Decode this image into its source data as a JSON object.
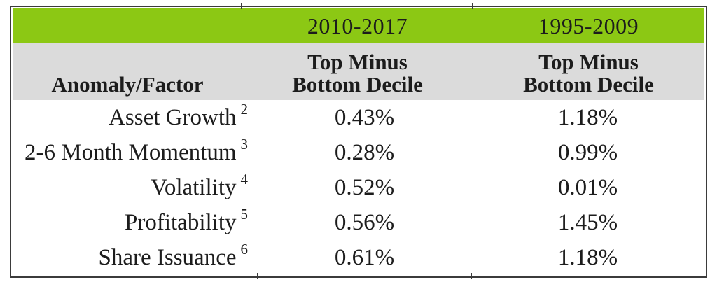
{
  "table": {
    "header": {
      "period1": "2010-2017",
      "period2": "1995-2009"
    },
    "subheader": {
      "factor_label": "Anomaly/Factor",
      "col2_line1": "Top Minus",
      "col2_line2": "Bottom Decile",
      "col3_line1": "Top Minus",
      "col3_line2": "Bottom Decile"
    },
    "rows": [
      {
        "label": "Asset Growth",
        "footnote": "2",
        "period1_value": "0.43%",
        "period2_value": "1.18%"
      },
      {
        "label": "2-6 Month Momentum",
        "footnote": "3",
        "period1_value": "0.28%",
        "period2_value": "0.99%"
      },
      {
        "label": "Volatility",
        "footnote": "4",
        "period1_value": "0.52%",
        "period2_value": "0.01%"
      },
      {
        "label": "Profitability",
        "footnote": "5",
        "period1_value": "0.56%",
        "period2_value": "1.45%"
      },
      {
        "label": "Share Issuance",
        "footnote": "6",
        "period1_value": "0.61%",
        "period2_value": "1.18%"
      }
    ]
  },
  "colors": {
    "header_green": "#8cc814",
    "subheader_gray": "#dbdbdb",
    "border": "#3b3b3b",
    "text": "#1c1c1c"
  },
  "chart_data": {
    "type": "table",
    "columns": [
      "Anomaly/Factor",
      "2010-2017 Top Minus Bottom Decile",
      "1995-2009 Top Minus Bottom Decile"
    ],
    "rows": [
      [
        "Asset Growth [2]",
        "0.43%",
        "1.18%"
      ],
      [
        "2-6 Month Momentum [3]",
        "0.28%",
        "0.99%"
      ],
      [
        "Volatility [4]",
        "0.52%",
        "0.01%"
      ],
      [
        "Profitability [5]",
        "0.56%",
        "1.45%"
      ],
      [
        "Share Issuance [6]",
        "0.61%",
        "1.18%"
      ]
    ]
  }
}
